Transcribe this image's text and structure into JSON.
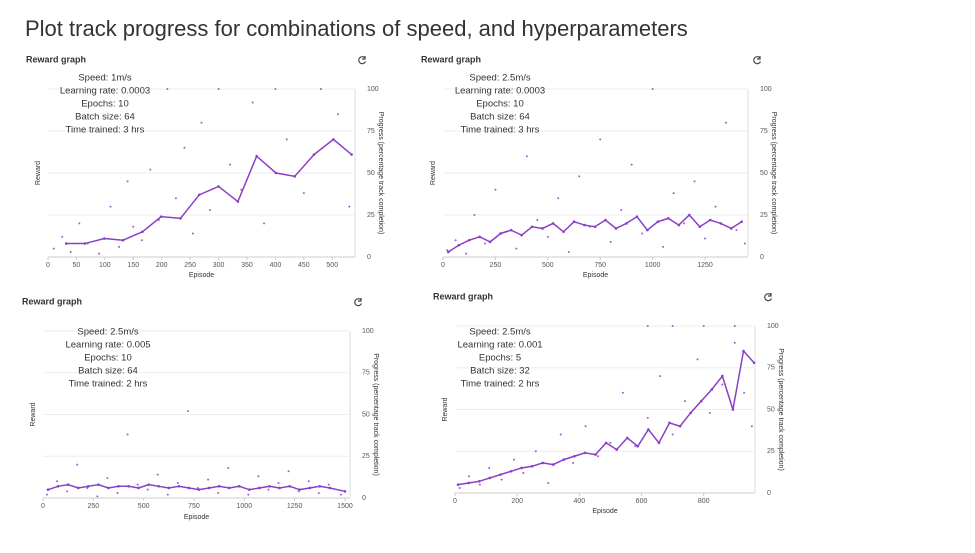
{
  "title": "Plot track progress for combinations of speed, and hyperparameters",
  "chart_data": [
    {
      "type": "line",
      "title": "Reward graph",
      "xlabel": "Episode",
      "ylabel": "Reward",
      "y2label": "Progress (percentage track completion)",
      "annotations": [
        "Speed: 1m/s",
        "Learning rate: 0.0003",
        "Epochs: 10",
        "Batch size: 64",
        "Time trained: 3 hrs"
      ],
      "xlim": [
        0,
        540
      ],
      "xticks": [
        0,
        50,
        100,
        150,
        200,
        250,
        300,
        350,
        400,
        450,
        500
      ],
      "ylim": [
        0,
        100
      ],
      "yticks": [
        0,
        25,
        50,
        75,
        100
      ],
      "grid": true,
      "series": [
        {
          "style": "dots",
          "color": "#a05ad6",
          "x": [
            10,
            25,
            40,
            55,
            70,
            90,
            110,
            125,
            140,
            150,
            165,
            180,
            195,
            210,
            225,
            240,
            255,
            270,
            285,
            300,
            320,
            340,
            360,
            380,
            400,
            420,
            450,
            480,
            510,
            530
          ],
          "values": [
            5,
            12,
            3,
            20,
            8,
            2,
            30,
            6,
            45,
            18,
            10,
            52,
            22,
            100,
            35,
            65,
            14,
            80,
            28,
            100,
            55,
            40,
            92,
            20,
            100,
            70,
            38,
            100,
            85,
            30
          ]
        },
        {
          "style": "line",
          "color": "#8a3fc7",
          "x": [
            32,
            65,
            99,
            132,
            166,
            199,
            233,
            266,
            300,
            334,
            367,
            401,
            434,
            468,
            502,
            534
          ],
          "values": [
            8,
            8,
            11,
            10,
            15,
            24,
            23,
            37,
            42,
            33,
            60,
            50,
            48,
            61,
            70,
            61
          ]
        }
      ]
    },
    {
      "type": "line",
      "title": "Reward graph",
      "xlabel": "Episode",
      "ylabel": "Reward",
      "y2label": "Progress (percentage track completion)",
      "annotations": [
        "Speed: 2.5m/s",
        "Learning rate: 0.0003",
        "Epochs: 10",
        "Batch size: 64",
        "Time trained: 3 hrs"
      ],
      "xlim": [
        0,
        1455
      ],
      "xticks": [
        0,
        250,
        500,
        750,
        1000,
        1250
      ],
      "ylim": [
        0,
        100
      ],
      "yticks": [
        0,
        25,
        50,
        75,
        100
      ],
      "grid": true,
      "series": [
        {
          "style": "dots",
          "color": "#a05ad6",
          "x": [
            20,
            60,
            110,
            150,
            200,
            250,
            300,
            350,
            400,
            450,
            500,
            550,
            600,
            650,
            700,
            750,
            800,
            850,
            900,
            950,
            1000,
            1050,
            1100,
            1150,
            1200,
            1250,
            1300,
            1350,
            1400,
            1440
          ],
          "values": [
            4,
            10,
            2,
            25,
            8,
            40,
            15,
            5,
            60,
            22,
            12,
            35,
            3,
            48,
            18,
            70,
            9,
            28,
            55,
            14,
            100,
            6,
            38,
            20,
            45,
            11,
            30,
            80,
            16,
            8
          ]
        },
        {
          "style": "line",
          "color": "#8a3fc7",
          "x": [
            25,
            75,
            125,
            175,
            225,
            275,
            325,
            375,
            425,
            475,
            525,
            575,
            625,
            675,
            725,
            775,
            825,
            875,
            925,
            975,
            1025,
            1075,
            1125,
            1175,
            1225,
            1275,
            1325,
            1375,
            1425
          ],
          "values": [
            3,
            7,
            10,
            12,
            9,
            14,
            16,
            13,
            18,
            17,
            20,
            15,
            21,
            19,
            18,
            22,
            17,
            20,
            24,
            16,
            21,
            23,
            19,
            25,
            18,
            22,
            20,
            17,
            21
          ]
        }
      ]
    },
    {
      "type": "line",
      "title": "Reward graph",
      "xlabel": "Episode",
      "ylabel": "Reward",
      "y2label": "Progress (percentage track completion)",
      "annotations": [
        "Speed: 2.5m/s",
        "Learning rate: 0.005",
        "Epochs: 10",
        "Batch size: 64",
        "Time trained: 2 hrs"
      ],
      "xlim": [
        0,
        1525
      ],
      "xticks": [
        0,
        250,
        500,
        750,
        1000,
        1250,
        1500
      ],
      "ylim": [
        0,
        100
      ],
      "yticks": [
        0,
        25,
        50,
        75,
        100
      ],
      "grid": true,
      "series": [
        {
          "style": "dots",
          "color": "#a05ad6",
          "x": [
            20,
            70,
            120,
            170,
            220,
            270,
            320,
            370,
            420,
            470,
            520,
            570,
            620,
            670,
            720,
            770,
            820,
            870,
            920,
            970,
            1020,
            1070,
            1120,
            1170,
            1220,
            1270,
            1320,
            1370,
            1420,
            1480
          ],
          "values": [
            2,
            10,
            4,
            20,
            6,
            1,
            12,
            3,
            38,
            8,
            5,
            14,
            2,
            9,
            52,
            6,
            11,
            3,
            18,
            7,
            2,
            13,
            5,
            9,
            16,
            4,
            10,
            3,
            8,
            2
          ]
        },
        {
          "style": "line",
          "color": "#8a3fc7",
          "x": [
            25,
            75,
            125,
            175,
            225,
            275,
            325,
            375,
            425,
            475,
            525,
            575,
            625,
            675,
            725,
            775,
            825,
            875,
            925,
            975,
            1025,
            1075,
            1125,
            1175,
            1225,
            1275,
            1325,
            1375,
            1425,
            1500
          ],
          "values": [
            5,
            7,
            8,
            6,
            7,
            8,
            6,
            7,
            7,
            6,
            8,
            7,
            6,
            7,
            6,
            5,
            6,
            7,
            6,
            7,
            5,
            6,
            7,
            6,
            7,
            5,
            6,
            7,
            6,
            4
          ]
        }
      ]
    },
    {
      "type": "line",
      "title": "Reward graph",
      "xlabel": "Episode",
      "ylabel": "Reward",
      "y2label": "Progress (percentage track completion)",
      "annotations": [
        "Speed: 2.5m/s",
        "Learning rate: 0.001",
        "Epochs: 5",
        "Batch size: 32",
        "Time trained: 2 hrs"
      ],
      "xlim": [
        0,
        965
      ],
      "xticks": [
        0,
        200,
        400,
        600,
        800
      ],
      "ylim": [
        0,
        100
      ],
      "yticks": [
        0,
        25,
        50,
        75,
        100
      ],
      "grid": true,
      "series": [
        {
          "style": "dots",
          "color": "#a05ad6",
          "x": [
            15,
            45,
            80,
            110,
            150,
            190,
            220,
            260,
            300,
            340,
            380,
            420,
            460,
            500,
            540,
            580,
            620,
            660,
            700,
            740,
            780,
            820,
            860,
            900,
            930,
            955,
            620,
            700,
            800,
            900
          ],
          "values": [
            3,
            10,
            5,
            15,
            8,
            20,
            12,
            25,
            6,
            35,
            18,
            40,
            22,
            30,
            60,
            28,
            45,
            70,
            35,
            55,
            80,
            48,
            65,
            90,
            60,
            40,
            100,
            100,
            100,
            100
          ]
        },
        {
          "style": "line",
          "color": "#8a3fc7",
          "x": [
            10,
            44,
            78,
            112,
            146,
            180,
            214,
            248,
            282,
            316,
            350,
            384,
            418,
            452,
            486,
            520,
            554,
            588,
            622,
            656,
            690,
            724,
            758,
            792,
            826,
            860,
            894,
            928,
            962
          ],
          "values": [
            5,
            6,
            7,
            9,
            11,
            13,
            15,
            16,
            18,
            17,
            20,
            22,
            24,
            23,
            30,
            26,
            33,
            28,
            38,
            30,
            42,
            40,
            48,
            55,
            62,
            70,
            50,
            85,
            78
          ]
        }
      ]
    }
  ]
}
